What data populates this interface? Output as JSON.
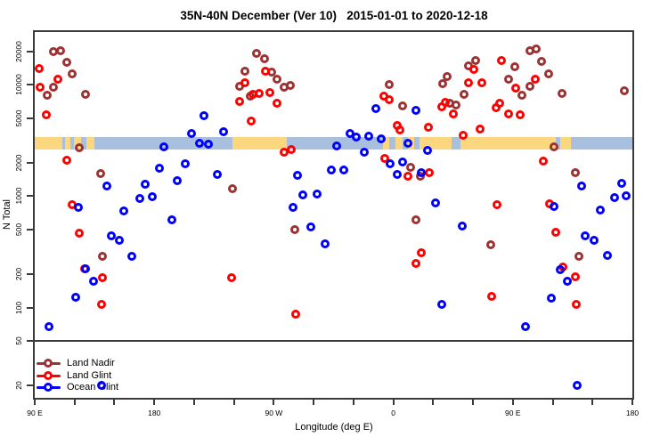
{
  "title": "35N-40N December (Ver 10)   2015-01-01 to 2020-12-18",
  "axes": {
    "x": {
      "label": "Longitude (deg E)",
      "note": "wrapped longitude axis spanning 450 deg: 90E to 180 to 90W to 0 to 90E to 180",
      "range_deg": [
        0,
        450
      ],
      "major_ticks": [
        {
          "deg": 0,
          "label": "90 E"
        },
        {
          "deg": 90,
          "label": "180"
        },
        {
          "deg": 180,
          "label": "90 W"
        },
        {
          "deg": 270,
          "label": "0"
        },
        {
          "deg": 360,
          "label": "90 E"
        },
        {
          "deg": 450,
          "label": "180"
        }
      ],
      "minor_tick_step_deg": 30
    },
    "y": {
      "label": "N Total",
      "scale": "log",
      "ylim": [
        15.5,
        29700
      ],
      "ticks": [
        20,
        50,
        100,
        200,
        500,
        1000,
        2000,
        5000,
        10000,
        20000
      ]
    }
  },
  "reference_line": {
    "n_value": 50,
    "color": "#3a3a3a"
  },
  "land_ocean_band": {
    "description": "land/ocean strip for 35N-40N latitude band drawn across plot",
    "n_low": 2600,
    "n_high": 3400,
    "land_color": "#FCD77F",
    "ocean_color": "#A8BFDD",
    "land_segments_deg": [
      [
        0,
        20.7
      ],
      [
        22.7,
        26.7
      ],
      [
        29.3,
        34.7
      ],
      [
        38.7,
        44.7
      ],
      [
        148.7,
        190
      ],
      [
        262,
        266.7
      ],
      [
        271.3,
        276.7
      ],
      [
        280.7,
        286
      ],
      [
        290,
        314
      ],
      [
        320.7,
        392
      ],
      [
        396,
        404
      ]
    ]
  },
  "legend": {
    "items": [
      {
        "label": "Land Nadir",
        "color": "#9C3232"
      },
      {
        "label": "Land Glint",
        "color": "#FF0000"
      },
      {
        "label": "Ocean Glint",
        "color": "#0000FF"
      }
    ]
  },
  "chart_data": {
    "type": "scatter",
    "x_axis": "degrees along wrapped longitude axis (0 = 90E at left edge, 90 = 180, 180 = 90W, 270 = 0, 360 = 90E, 450 = 180 at right edge)",
    "y_axis": "N Total (log scale)",
    "marker": "open-circle",
    "series": [
      {
        "name": "Land Nadir",
        "color": "#9C3232",
        "points": [
          [
            14,
            19900
          ],
          [
            19.3,
            20300
          ],
          [
            24,
            16000
          ],
          [
            28,
            12600
          ],
          [
            14,
            9440
          ],
          [
            9.3,
            8000
          ],
          [
            38,
            8150
          ],
          [
            33.3,
            2740
          ],
          [
            49.3,
            1610
          ],
          [
            51.3,
            286
          ],
          [
            154,
            9610
          ],
          [
            158,
            13300
          ],
          [
            162,
            7870
          ],
          [
            167.3,
            19200
          ],
          [
            172.7,
            17200
          ],
          [
            178.7,
            13100
          ],
          [
            182.7,
            11300
          ],
          [
            188,
            9440
          ],
          [
            192.7,
            9790
          ],
          [
            148.7,
            1160
          ],
          [
            196,
            502
          ],
          [
            266.7,
            10000
          ],
          [
            276.7,
            6430
          ],
          [
            282.7,
            1800
          ],
          [
            286.7,
            613
          ],
          [
            290.7,
            1500
          ],
          [
            307.3,
            10150
          ],
          [
            310.7,
            11750
          ],
          [
            312.7,
            6790
          ],
          [
            317.3,
            6550
          ],
          [
            323.3,
            8140
          ],
          [
            326.7,
            14900
          ],
          [
            332,
            16600
          ],
          [
            343.3,
            368
          ],
          [
            356.7,
            11300
          ],
          [
            361.3,
            14600
          ],
          [
            366.7,
            8000
          ],
          [
            372.7,
            9610
          ],
          [
            372.7,
            20300
          ],
          [
            377.3,
            21000
          ],
          [
            381.3,
            16300
          ],
          [
            386.7,
            12600
          ],
          [
            390.7,
            2780
          ],
          [
            396.7,
            8300
          ],
          [
            407.3,
            1620
          ],
          [
            410,
            291
          ],
          [
            444,
            8900
          ]
        ]
      },
      {
        "name": "Land Glint",
        "color": "#FF0000",
        "points": [
          [
            3.3,
            14100
          ],
          [
            4,
            9440
          ],
          [
            8.7,
            5360
          ],
          [
            17.3,
            11300
          ],
          [
            24,
            2120
          ],
          [
            28,
            836
          ],
          [
            33.3,
            467
          ],
          [
            37.3,
            225
          ],
          [
            50,
            107
          ],
          [
            51.3,
            185
          ],
          [
            148,
            187
          ],
          [
            154,
            7050
          ],
          [
            158,
            10500
          ],
          [
            162.7,
            4720
          ],
          [
            164,
            8140
          ],
          [
            168.7,
            8290
          ],
          [
            174,
            13300
          ],
          [
            177.3,
            8450
          ],
          [
            182.7,
            6790
          ],
          [
            188,
            2500
          ],
          [
            193.3,
            2640
          ],
          [
            196.7,
            87
          ],
          [
            262.7,
            7850
          ],
          [
            263.3,
            2200
          ],
          [
            266.7,
            7310
          ],
          [
            272.7,
            4310
          ],
          [
            274.7,
            3940
          ],
          [
            281.3,
            1500
          ],
          [
            286.7,
            247
          ],
          [
            291.3,
            313
          ],
          [
            296.7,
            4160
          ],
          [
            297.3,
            1640
          ],
          [
            306.7,
            6320
          ],
          [
            309.3,
            6920
          ],
          [
            315.3,
            5470
          ],
          [
            322.7,
            3530
          ],
          [
            326.7,
            10500
          ],
          [
            330.7,
            13600
          ],
          [
            335.3,
            4010
          ],
          [
            336.7,
            10330
          ],
          [
            344,
            126
          ],
          [
            347.3,
            6200
          ],
          [
            348,
            835
          ],
          [
            350,
            6790
          ],
          [
            351.3,
            16600
          ],
          [
            356.7,
            5440
          ],
          [
            362,
            9270
          ],
          [
            365.3,
            5370
          ],
          [
            376.7,
            11300
          ],
          [
            382.7,
            2080
          ],
          [
            387.3,
            851
          ],
          [
            392,
            475
          ],
          [
            398,
            230
          ],
          [
            407.3,
            190
          ],
          [
            408,
            107
          ]
        ]
      },
      {
        "name": "Ocean Glint",
        "color": "#0000FF",
        "points": [
          [
            10.7,
            68
          ],
          [
            30.7,
            124
          ],
          [
            32.7,
            793
          ],
          [
            38,
            221
          ],
          [
            44,
            171
          ],
          [
            50,
            20
          ],
          [
            54,
            1230
          ],
          [
            58,
            442
          ],
          [
            64,
            404
          ],
          [
            67.3,
            736
          ],
          [
            73.3,
            290
          ],
          [
            79.3,
            950
          ],
          [
            83.3,
            1290
          ],
          [
            88.7,
            986
          ],
          [
            94,
            1770
          ],
          [
            97.3,
            2790
          ],
          [
            103.3,
            613
          ],
          [
            107.3,
            1390
          ],
          [
            113.3,
            1970
          ],
          [
            118,
            3670
          ],
          [
            124,
            3000
          ],
          [
            127.3,
            5270
          ],
          [
            131,
            2950
          ],
          [
            137.3,
            1560
          ],
          [
            142,
            3800
          ],
          [
            194.7,
            795
          ],
          [
            198,
            1530
          ],
          [
            202,
            1020
          ],
          [
            208,
            531
          ],
          [
            212.7,
            1040
          ],
          [
            218.7,
            370
          ],
          [
            223.3,
            1730
          ],
          [
            227.3,
            2840
          ],
          [
            232.7,
            1730
          ],
          [
            237.3,
            3670
          ],
          [
            242,
            3400
          ],
          [
            248,
            2460
          ],
          [
            251.3,
            3470
          ],
          [
            256.7,
            6100
          ],
          [
            260.7,
            3280
          ],
          [
            267.3,
            1970
          ],
          [
            272.7,
            1560
          ],
          [
            276.7,
            2040
          ],
          [
            280.7,
            2960
          ],
          [
            287.3,
            5880
          ],
          [
            291.3,
            1640
          ],
          [
            296,
            2590
          ],
          [
            302,
            867
          ],
          [
            306.7,
            107
          ],
          [
            322,
            541
          ],
          [
            369.3,
            68
          ],
          [
            389.3,
            121
          ],
          [
            390.7,
            807
          ],
          [
            396,
            217
          ],
          [
            401.3,
            172
          ],
          [
            408.7,
            20
          ],
          [
            412,
            1230
          ],
          [
            414.7,
            442
          ],
          [
            421.3,
            402
          ],
          [
            426,
            750
          ],
          [
            431.3,
            296
          ],
          [
            436.7,
            968
          ],
          [
            442,
            1300
          ],
          [
            445.3,
            1005
          ]
        ]
      }
    ]
  }
}
